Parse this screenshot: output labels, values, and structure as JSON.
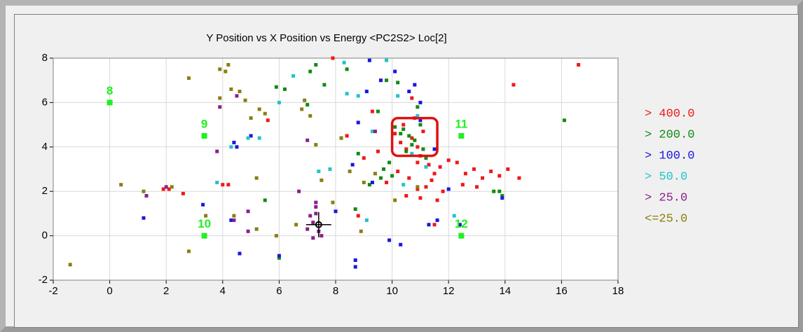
{
  "chart_data": {
    "type": "scatter",
    "title": "Y Position vs X Position vs Energy <PC2S2> Loc[2]",
    "xlim": [
      -2,
      18
    ],
    "ylim": [
      -2,
      8
    ],
    "xticks": [
      -2,
      0,
      2,
      4,
      6,
      8,
      10,
      12,
      14,
      16,
      18
    ],
    "yticks": [
      -2,
      0,
      2,
      4,
      6,
      8
    ],
    "grid": true,
    "series": [
      {
        "name": "> 400.0",
        "color": "#f01818",
        "x": [
          16.6,
          14.3,
          10.1,
          10.3,
          10.5,
          10.7,
          10.9,
          11.1,
          10.4,
          10.8,
          11.0,
          11.3,
          10.2,
          10.6,
          10.9,
          11.2,
          11.5,
          11.7,
          12.0,
          12.3,
          12.6,
          12.9,
          13.2,
          13.5,
          13.8,
          14.1,
          14.5,
          13.0,
          12.5,
          11.8,
          11.4,
          10.9,
          10.5,
          11.0,
          11.6,
          9.8,
          9.5,
          9.0,
          8.4,
          7.9,
          5.6,
          4.2,
          4.0,
          1.9,
          2.1,
          2.6,
          8.8,
          11.5,
          9.3,
          10.7
        ],
        "y": [
          7.7,
          6.8,
          4.6,
          4.2,
          3.9,
          4.4,
          4.0,
          4.7,
          5.0,
          5.3,
          3.6,
          3.2,
          2.9,
          2.6,
          3.3,
          2.2,
          2.8,
          3.1,
          3.4,
          3.3,
          2.8,
          3.0,
          2.6,
          2.9,
          2.7,
          3.0,
          2.6,
          2.2,
          2.3,
          2.0,
          2.5,
          2.1,
          1.8,
          1.7,
          1.6,
          2.4,
          3.8,
          3.5,
          4.5,
          8.0,
          5.2,
          2.3,
          2.3,
          2.1,
          2.1,
          1.9,
          0.9,
          0.5,
          5.6,
          6.2
        ]
      },
      {
        "name": "> 200.0",
        "color": "#138a13",
        "x": [
          10.6,
          10.7,
          10.4,
          10.5,
          10.8,
          10.1,
          10.3,
          11.0,
          11.1,
          9.9,
          9.6,
          9.2,
          8.7,
          8.2,
          7.6,
          7.1,
          6.2,
          5.9,
          6.0,
          7.3,
          7.0,
          8.8,
          9.5,
          10.2,
          9.7,
          13.8,
          13.9,
          13.6,
          16.1,
          5.5,
          10.0,
          11.2,
          9.8,
          10.9,
          8.4
        ],
        "y": [
          4.5,
          4.1,
          4.8,
          3.8,
          4.3,
          4.9,
          4.6,
          5.0,
          3.9,
          3.3,
          2.6,
          2.3,
          1.2,
          4.4,
          6.8,
          7.4,
          6.6,
          6.7,
          -1.0,
          7.7,
          5.9,
          3.7,
          5.6,
          6.9,
          3.0,
          2.0,
          1.8,
          2.0,
          5.2,
          1.6,
          2.7,
          3.5,
          7.0,
          5.8,
          7.5
        ]
      },
      {
        "name": "> 100.0",
        "color": "#1818e0",
        "x": [
          8.7,
          8.7,
          9.9,
          10.3,
          11.3,
          10.6,
          11.6,
          12.4,
          10.8,
          11.0,
          9.1,
          8.6,
          8.0,
          8.8,
          9.3,
          10.1,
          11.5,
          12.0,
          13.9,
          4.6,
          4.4,
          4.3,
          3.3,
          1.2,
          4.5,
          6.0,
          9.6,
          5.0,
          9.2,
          11.0
        ],
        "y": [
          -1.1,
          -1.4,
          -0.2,
          -0.4,
          0.5,
          6.5,
          0.7,
          0.5,
          6.8,
          5.2,
          6.5,
          3.2,
          1.1,
          5.1,
          2.4,
          7.4,
          3.9,
          2.1,
          1.7,
          -0.8,
          4.2,
          0.7,
          1.4,
          0.8,
          4.0,
          -0.9,
          7.0,
          4.5,
          7.9,
          6.0
        ]
      },
      {
        "name": "> 50.0",
        "color": "#20c4c8",
        "x": [
          9.8,
          10.2,
          10.9,
          10.4,
          11.2,
          8.4,
          8.3,
          8.8,
          9.3,
          7.8,
          7.4,
          6.5,
          6.0,
          4.3,
          4.9,
          3.8,
          5.3,
          9.1,
          10.7,
          12.2
        ],
        "y": [
          7.9,
          6.3,
          5.4,
          2.3,
          3.1,
          6.4,
          7.8,
          6.3,
          4.7,
          3.0,
          2.9,
          7.2,
          6.0,
          4.0,
          4.4,
          2.4,
          4.4,
          0.7,
          3.7,
          0.9
        ]
      },
      {
        "name": "> 25.0",
        "color": "#8a208e",
        "x": [
          7.3,
          7.3,
          7.4,
          7.2,
          7.1,
          7.5,
          7.0,
          7.3,
          7.2,
          4.4,
          4.9,
          3.9,
          3.8,
          1.3,
          2.0,
          4.5,
          4.9,
          6.7,
          7.0,
          9.4
        ],
        "y": [
          1.3,
          1.0,
          0.2,
          -0.1,
          0.9,
          0.0,
          0.3,
          1.5,
          0.6,
          0.7,
          0.2,
          5.8,
          3.8,
          1.8,
          2.2,
          6.3,
          1.1,
          2.0,
          4.3,
          4.7
        ]
      },
      {
        "name": "<=25.0",
        "color": "#8a7e10",
        "x": [
          -1.4,
          0.4,
          1.2,
          2.2,
          2.8,
          2.8,
          3.4,
          3.9,
          3.9,
          4.1,
          4.3,
          4.2,
          4.6,
          4.8,
          5.0,
          5.3,
          5.2,
          5.5,
          5.2,
          5.9,
          6.6,
          6.8,
          6.9,
          7.1,
          7.3,
          7.5,
          7.9,
          8.2,
          8.5,
          8.9,
          9.0,
          9.4,
          10.1,
          10.9,
          4.4
        ],
        "y": [
          -1.3,
          2.3,
          2.0,
          2.2,
          7.1,
          -0.7,
          0.9,
          7.5,
          6.2,
          7.4,
          6.6,
          7.7,
          6.5,
          6.1,
          5.3,
          5.7,
          2.6,
          5.5,
          0.3,
          0.0,
          0.5,
          5.7,
          6.1,
          5.4,
          4.1,
          2.5,
          1.5,
          4.4,
          2.9,
          0.2,
          2.4,
          2.8,
          1.6,
          2.2,
          0.9
        ]
      }
    ],
    "stations": [
      {
        "label": "8",
        "x": 0,
        "y": 6
      },
      {
        "label": "9",
        "x": 3.35,
        "y": 4.5
      },
      {
        "label": "10",
        "x": 3.35,
        "y": 0
      },
      {
        "label": "11",
        "x": 12.45,
        "y": 4.5
      },
      {
        "label": "12",
        "x": 12.45,
        "y": 0
      }
    ],
    "station_color": "#22ee22",
    "marker": {
      "x": 7.4,
      "y": 0.5
    },
    "highlight": {
      "x": [
        10.0,
        11.6
      ],
      "y": [
        3.6,
        5.3
      ],
      "color": "#e01010"
    }
  }
}
